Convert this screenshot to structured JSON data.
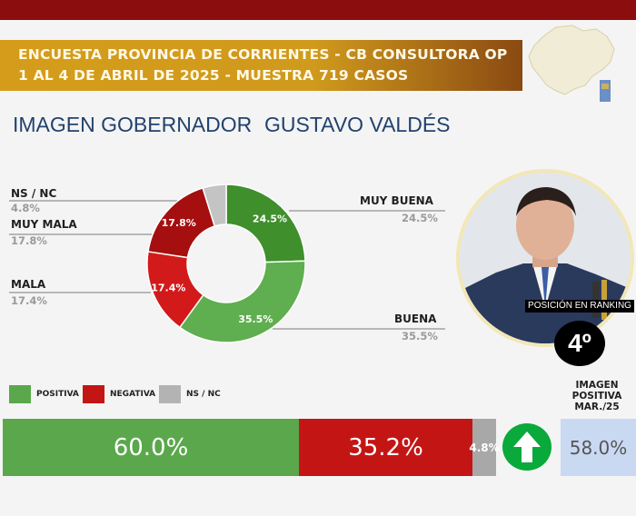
{
  "header": {
    "line1": "ENCUESTA PROVINCIA DE CORRIENTES - CB CONSULTORA OP",
    "line2": "1 AL 4 DE ABRIL DE 2025 - MUESTRA 719 CASOS"
  },
  "subtitle": {
    "left": "IMAGEN GOBERNADOR",
    "right": "GUSTAVO VALDÉS"
  },
  "ranking": {
    "label": "POSICIÓN EN RANKING",
    "value": "4º"
  },
  "legend": [
    {
      "label": "POSITIVA",
      "color": "#5aa84b"
    },
    {
      "label": "NEGATIVA",
      "color": "#c41515"
    },
    {
      "label": "NS / NC",
      "color": "#b3b3b3"
    }
  ],
  "previous": {
    "title": "IMAGEN POSITIVA MAR./25",
    "value": "58.0%"
  },
  "colors": {
    "muy_buena": "#3f8f2c",
    "buena": "#5fae4f",
    "mala": "#d21a1a",
    "muy_mala": "#a50f0f",
    "nsnc": "#c4c4c4",
    "arrow": "#0aa93b"
  },
  "chart_data": [
    {
      "type": "pie",
      "categories": [
        "MUY BUENA",
        "BUENA",
        "MALA",
        "MUY MALA",
        "NS / NC"
      ],
      "values": [
        24.5,
        35.5,
        17.4,
        17.8,
        4.8
      ],
      "value_labels": [
        "24.5%",
        "35.5%",
        "17.4%",
        "17.8%",
        "4.8%"
      ]
    },
    {
      "type": "bar",
      "categories": [
        "POSITIVA",
        "NEGATIVA",
        "NS / NC"
      ],
      "values": [
        60.0,
        35.2,
        4.8
      ],
      "value_labels": [
        "60.0%",
        "35.2%",
        "4.8%"
      ]
    }
  ]
}
